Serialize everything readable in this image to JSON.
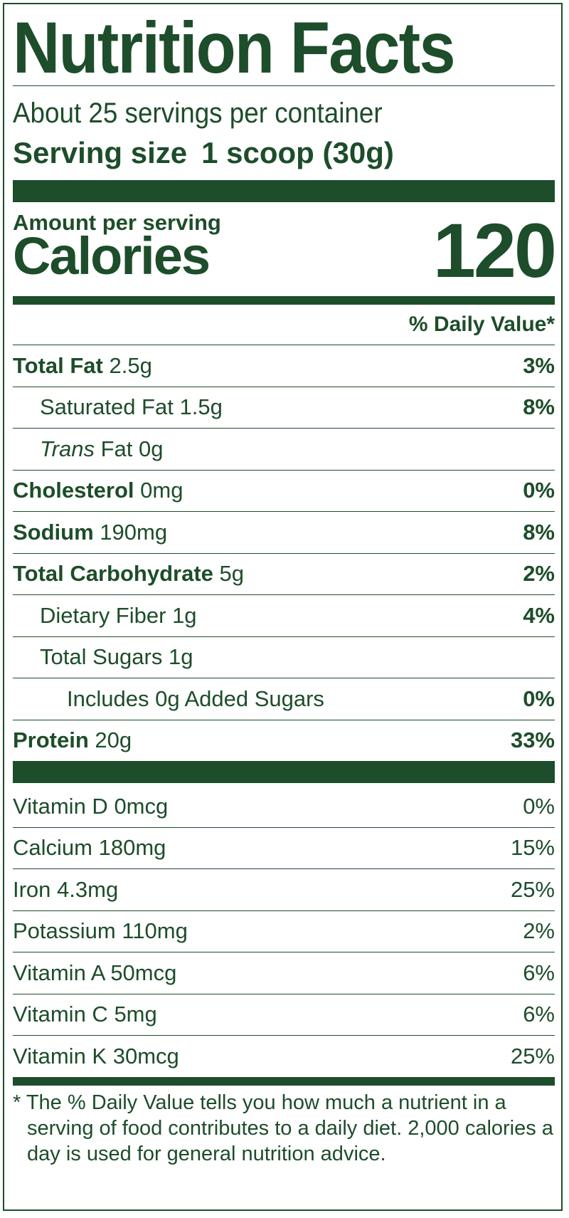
{
  "title": "Nutrition Facts",
  "servings": "About 25 servings per container",
  "serving_size": {
    "label": "Serving size",
    "value": "1 scoop (30g)"
  },
  "amount_per_serving": "Amount per serving",
  "calories": {
    "label": "Calories",
    "value": "120"
  },
  "daily_value_header": "% Daily Value*",
  "nutrients": [
    {
      "name": "Total Fat",
      "amount": "2.5g",
      "dv": "3%"
    },
    {
      "name": "Saturated Fat",
      "amount": "1.5g",
      "dv": "8%"
    },
    {
      "name_italic": "Trans",
      "name": "Fat",
      "amount": "0g"
    },
    {
      "name": "Cholesterol",
      "amount": "0mg",
      "dv": "0%"
    },
    {
      "name": "Sodium",
      "amount": "190mg",
      "dv": "8%"
    },
    {
      "name": "Total Carbohydrate",
      "amount": "5g",
      "dv": "2%"
    },
    {
      "name": "Dietary Fiber",
      "amount": "1g",
      "dv": "4%"
    },
    {
      "name": "Total Sugars",
      "amount": "1g"
    },
    {
      "name": "Includes 0g Added Sugars",
      "dv": "0%"
    },
    {
      "name": "Protein",
      "amount": "20g",
      "dv": "33%"
    }
  ],
  "vitamins": [
    {
      "name": "Vitamin D",
      "amount": "0mcg",
      "dv": "0%"
    },
    {
      "name": "Calcium",
      "amount": "180mg",
      "dv": "15%"
    },
    {
      "name": "Iron",
      "amount": "4.3mg",
      "dv": "25%"
    },
    {
      "name": "Potassium",
      "amount": "110mg",
      "dv": "2%"
    },
    {
      "name": "Vitamin A",
      "amount": "50mcg",
      "dv": "6%"
    },
    {
      "name": "Vitamin C",
      "amount": "5mg",
      "dv": "6%"
    },
    {
      "name": "Vitamin K",
      "amount": "30mcg",
      "dv": "25%"
    }
  ],
  "footnote": "* The % Daily Value tells you how much a nutrient in a serving of food contributes to a daily diet. 2,000 calories a day is used for general nutrition advice."
}
